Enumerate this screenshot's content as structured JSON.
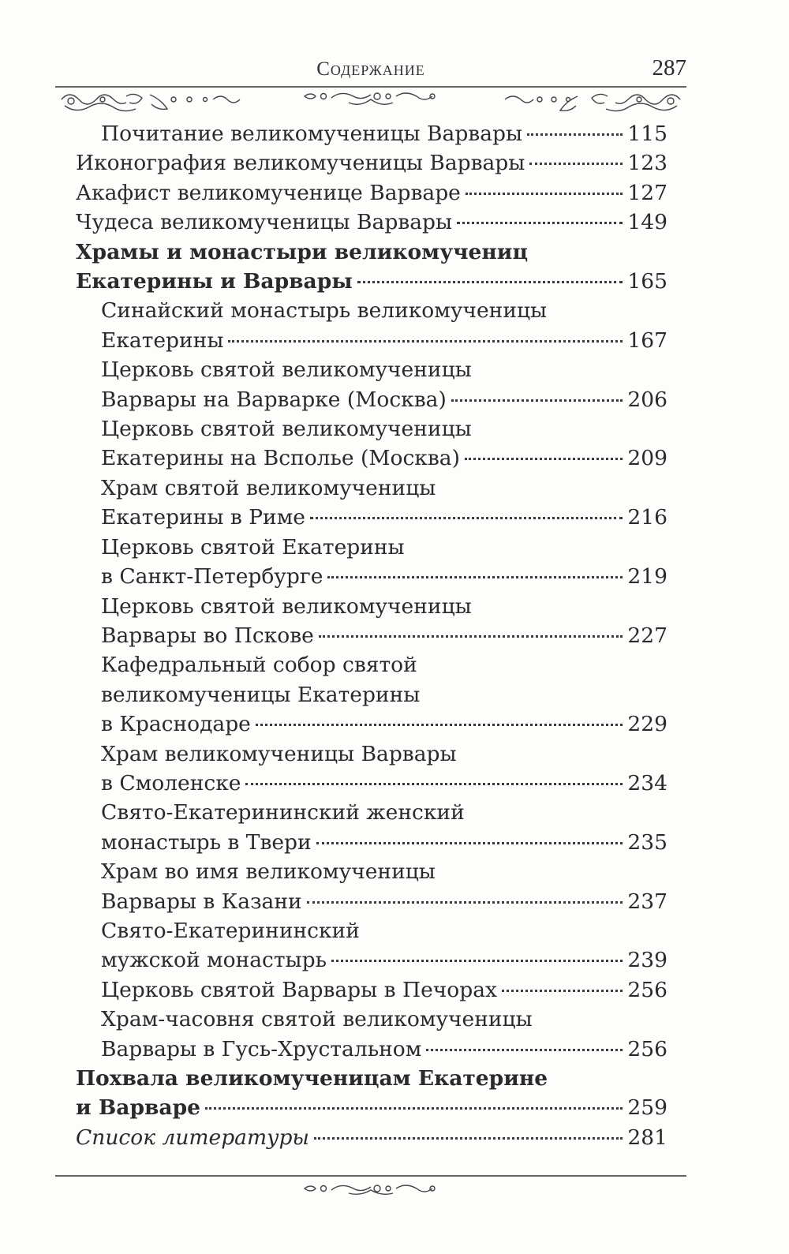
{
  "header": {
    "title": "Содержание",
    "page_number": "287"
  },
  "toc": [
    {
      "lines": [
        "Почитание великомученицы Варвары"
      ],
      "page": "115",
      "indent": true,
      "style": "normal"
    },
    {
      "lines": [
        "Иконография великомученицы Варвары"
      ],
      "page": "123",
      "indent": false,
      "style": "normal"
    },
    {
      "lines": [
        "Акафист великомученице Варваре"
      ],
      "page": "127",
      "indent": false,
      "style": "normal"
    },
    {
      "lines": [
        "Чудеса великомученицы Варвары"
      ],
      "page": "149",
      "indent": false,
      "style": "normal"
    },
    {
      "lines": [
        "Храмы и монастыри великомучениц",
        "Екатерины и Варвары"
      ],
      "page": "165",
      "indent": false,
      "style": "bold"
    },
    {
      "lines": [
        "Синайский монастырь великомученицы",
        "Екатерины"
      ],
      "page": "167",
      "indent": true,
      "style": "normal"
    },
    {
      "lines": [
        "Церковь святой великомученицы",
        "Варвары на Варварке (Москва)"
      ],
      "page": "206",
      "indent": true,
      "style": "normal"
    },
    {
      "lines": [
        "Церковь святой великомученицы",
        "Екатерины на Всполье (Москва)"
      ],
      "page": "209",
      "indent": true,
      "style": "normal"
    },
    {
      "lines": [
        "Храм святой великомученицы",
        "Екатерины в Риме"
      ],
      "page": "216",
      "indent": true,
      "style": "normal"
    },
    {
      "lines": [
        "Церковь святой Екатерины",
        "в Санкт-Петербурге"
      ],
      "page": "219",
      "indent": true,
      "style": "normal"
    },
    {
      "lines": [
        "Церковь святой великомученицы",
        "Варвары во Пскове"
      ],
      "page": "227",
      "indent": true,
      "style": "normal"
    },
    {
      "lines": [
        "Кафедральный собор святой",
        "великомученицы Екатерины",
        "в Краснодаре"
      ],
      "page": "229",
      "indent": true,
      "style": "normal"
    },
    {
      "lines": [
        "Храм великомученицы Варвары",
        "в Смоленске"
      ],
      "page": "234",
      "indent": true,
      "style": "normal"
    },
    {
      "lines": [
        "Свято-Екатерининский женский",
        "монастырь в Твери"
      ],
      "page": "235",
      "indent": true,
      "style": "normal"
    },
    {
      "lines": [
        "Храм во имя великомученицы",
        "Варвары в Казани"
      ],
      "page": "237",
      "indent": true,
      "style": "normal"
    },
    {
      "lines": [
        "Свято-Екатерининский",
        "мужской монастырь"
      ],
      "page": "239",
      "indent": true,
      "style": "normal"
    },
    {
      "lines": [
        "Церковь святой Варвары в Печорах"
      ],
      "page": "256",
      "indent": true,
      "style": "normal"
    },
    {
      "lines": [
        "Храм-часовня святой великомученицы",
        "Варвары в Гусь-Хрустальном"
      ],
      "page": "256",
      "indent": true,
      "style": "normal"
    },
    {
      "lines": [
        "Похвала великомученицам Екатерине",
        "и Варваре"
      ],
      "page": "259",
      "indent": false,
      "style": "bold"
    },
    {
      "lines": [
        "Список литературы"
      ],
      "page": "281",
      "indent": false,
      "style": "italic"
    }
  ]
}
